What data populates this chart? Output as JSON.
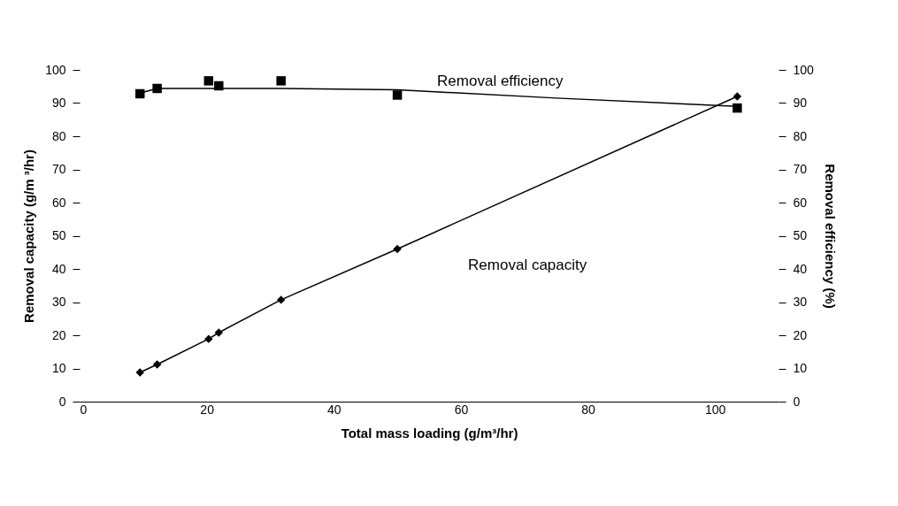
{
  "chart_data": {
    "type": "line",
    "xlabel": "Total mass loading (g/m³/hr)",
    "ylabel": "Removal capacity (g/m ³/hr)",
    "y2label": "Removal efficiency (%)",
    "xlim": [
      0,
      110
    ],
    "xticks": [
      0,
      20,
      40,
      60,
      80,
      100
    ],
    "ylim": [
      0,
      100
    ],
    "yticks": [
      0,
      10,
      20,
      30,
      40,
      50,
      60,
      70,
      80,
      90,
      100
    ],
    "y2lim": [
      0,
      100
    ],
    "y2ticks": [
      0,
      10,
      20,
      30,
      40,
      50,
      60,
      70,
      80,
      90,
      100
    ],
    "grid": false,
    "series": [
      {
        "name": "Removal capacity",
        "marker": "diamond",
        "color": "#000000",
        "x": [
          9.5,
          12.2,
          20.3,
          21.9,
          31.7,
          50,
          103.5
        ],
        "values": [
          8.8,
          11.2,
          18.9,
          20.8,
          30.7,
          46,
          92
        ]
      },
      {
        "name": "Removal efficiency",
        "type": "scatter",
        "marker": "square",
        "axis": "y2",
        "color": "#000000",
        "x": [
          9.5,
          12.2,
          20.3,
          21.9,
          31.7,
          50,
          103.5
        ],
        "values": [
          92.8,
          94.4,
          96.7,
          95.2,
          96.7,
          92.4,
          88.5
        ]
      },
      {
        "type": "line",
        "marker": "none",
        "axis": "y2",
        "color": "#000000",
        "x": [
          9.5,
          12.2,
          31.7,
          50,
          75,
          103.5
        ],
        "values": [
          93,
          94.4,
          94.4,
          94,
          91.5,
          89
        ]
      }
    ]
  }
}
